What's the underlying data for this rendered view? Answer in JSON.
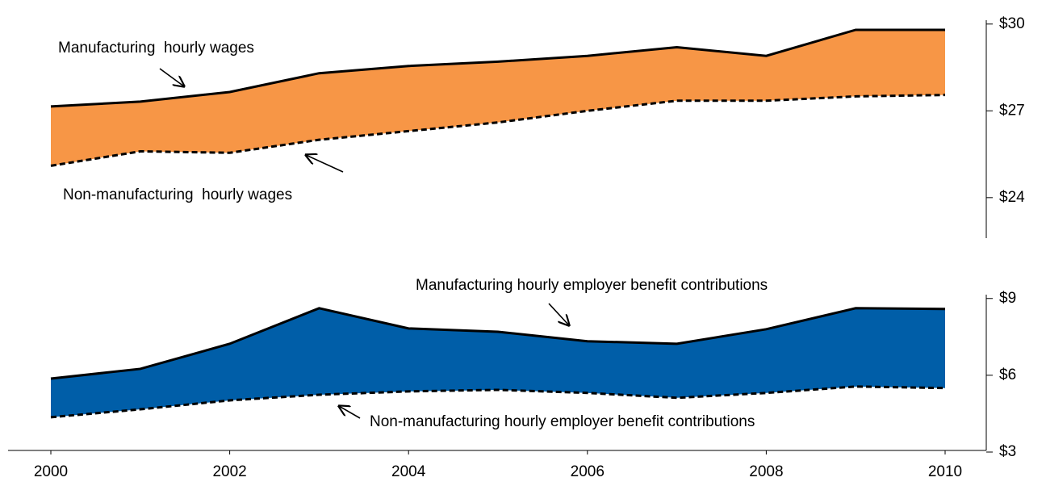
{
  "chart_data": [
    {
      "type": "area_band",
      "x": [
        2000,
        2001,
        2002,
        2003,
        2004,
        2005,
        2006,
        2007,
        2008,
        2009,
        2010
      ],
      "xlim": [
        2000,
        2010
      ],
      "fill": "#f79646",
      "series": [
        {
          "name": "Manufacturing  hourly wages",
          "color": "#000000",
          "line_style": "solid",
          "values": [
            27.15,
            27.32,
            27.65,
            28.3,
            28.55,
            28.7,
            28.9,
            29.2,
            28.9,
            29.8,
            29.8
          ]
        },
        {
          "name": "Non-manufacturing  hourly wages",
          "color": "#000000",
          "line_style": "dashed",
          "values": [
            25.1,
            25.6,
            25.55,
            26.0,
            26.3,
            26.6,
            27.0,
            27.35,
            27.35,
            27.5,
            27.55
          ]
        }
      ],
      "ylim": [
        22.6,
        30.05
      ],
      "yticks": [
        {
          "value": 24,
          "label": "$24"
        },
        {
          "value": 27,
          "label": "$27"
        },
        {
          "value": 30,
          "label": "$30"
        }
      ]
    },
    {
      "type": "area_band",
      "x": [
        2000,
        2001,
        2002,
        2003,
        2004,
        2005,
        2006,
        2007,
        2008,
        2009,
        2010
      ],
      "xlim": [
        2000,
        2010
      ],
      "xticks": [
        2000,
        2002,
        2004,
        2006,
        2008,
        2010
      ],
      "fill": "#005ea8",
      "series": [
        {
          "name": "Manufacturing hourly employer benefit contributions",
          "color": "#000000",
          "line_style": "solid",
          "values": [
            5.87,
            6.25,
            7.23,
            8.62,
            7.83,
            7.7,
            7.33,
            7.23,
            7.8,
            8.62,
            8.59
          ]
        },
        {
          "name": "Non-manufacturing hourly employer benefit contributions",
          "color": "#000000",
          "line_style": "dashed",
          "values": [
            4.36,
            4.67,
            5.02,
            5.24,
            5.37,
            5.43,
            5.31,
            5.12,
            5.31,
            5.56,
            5.5
          ]
        }
      ],
      "ylim": [
        3,
        9.15
      ],
      "yticks": [
        {
          "value": 3,
          "label": "$3"
        },
        {
          "value": 6,
          "label": "$6"
        },
        {
          "value": 9,
          "label": "$9"
        }
      ]
    }
  ]
}
